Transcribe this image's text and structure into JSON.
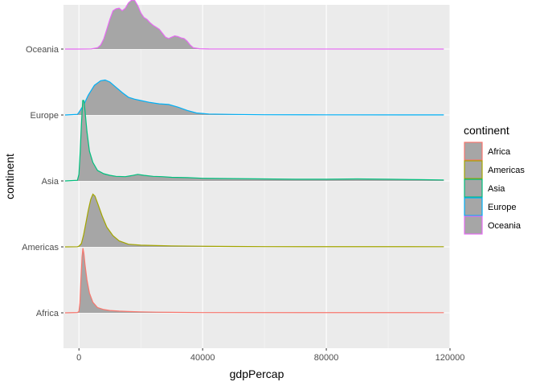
{
  "chart_data": {
    "type": "area",
    "subtype": "ridgeline-density",
    "xlabel": "gdpPercap",
    "ylabel": "continent",
    "xlim": [
      -5000,
      120000
    ],
    "x_ticks": [
      0,
      40000,
      80000,
      120000
    ],
    "x_tick_labels": [
      "0",
      "40000",
      "80000",
      "120000"
    ],
    "categories": [
      "Africa",
      "Americas",
      "Asia",
      "Europe",
      "Oceania"
    ],
    "grid": true,
    "legend": {
      "title": "continent",
      "position": "right"
    },
    "fill_color": "#A6A6A6",
    "series": [
      {
        "name": "Africa",
        "color": "#F8766D",
        "x_range": [
          -4500,
          118000
        ],
        "points": [
          [
            -4500,
            0
          ],
          [
            -500,
            0.005
          ],
          [
            0,
            0.02
          ],
          [
            300,
            0.15
          ],
          [
            600,
            0.45
          ],
          [
            1000,
            0.85
          ],
          [
            1300,
            0.98
          ],
          [
            1600,
            0.9
          ],
          [
            2000,
            0.72
          ],
          [
            2600,
            0.5
          ],
          [
            3400,
            0.3
          ],
          [
            4500,
            0.16
          ],
          [
            6000,
            0.08
          ],
          [
            8000,
            0.05
          ],
          [
            10000,
            0.035
          ],
          [
            13000,
            0.025
          ],
          [
            16000,
            0.02
          ],
          [
            20000,
            0.015
          ],
          [
            25000,
            0.01
          ],
          [
            30000,
            0.007
          ],
          [
            40000,
            0.004
          ],
          [
            118000,
            0.003
          ]
        ]
      },
      {
        "name": "Americas",
        "color": "#A3A500",
        "x_range": [
          -4500,
          118000
        ],
        "points": [
          [
            -4500,
            0
          ],
          [
            -500,
            0.003
          ],
          [
            0,
            0.01
          ],
          [
            800,
            0.05
          ],
          [
            1500,
            0.18
          ],
          [
            2200,
            0.35
          ],
          [
            3000,
            0.55
          ],
          [
            3800,
            0.72
          ],
          [
            4500,
            0.8
          ],
          [
            5200,
            0.77
          ],
          [
            6200,
            0.64
          ],
          [
            7500,
            0.47
          ],
          [
            9000,
            0.3
          ],
          [
            11000,
            0.17
          ],
          [
            13000,
            0.09
          ],
          [
            16000,
            0.04
          ],
          [
            20000,
            0.025
          ],
          [
            25000,
            0.02
          ],
          [
            30000,
            0.015
          ],
          [
            40000,
            0.01
          ],
          [
            50000,
            0.006
          ],
          [
            60000,
            0.004
          ],
          [
            118000,
            0.003
          ]
        ]
      },
      {
        "name": "Asia",
        "color": "#00BF7D",
        "x_range": [
          -4500,
          118000
        ],
        "points": [
          [
            -4500,
            0
          ],
          [
            -500,
            0.01
          ],
          [
            0,
            0.1
          ],
          [
            400,
            0.45
          ],
          [
            800,
            0.85
          ],
          [
            1200,
            1.22
          ],
          [
            1600,
            1.22
          ],
          [
            2000,
            1.05
          ],
          [
            2600,
            0.75
          ],
          [
            3400,
            0.45
          ],
          [
            4500,
            0.28
          ],
          [
            6000,
            0.16
          ],
          [
            8000,
            0.11
          ],
          [
            10000,
            0.085
          ],
          [
            12000,
            0.07
          ],
          [
            15000,
            0.065
          ],
          [
            17000,
            0.08
          ],
          [
            19000,
            0.1
          ],
          [
            21000,
            0.085
          ],
          [
            24000,
            0.07
          ],
          [
            27000,
            0.065
          ],
          [
            30000,
            0.055
          ],
          [
            35000,
            0.05
          ],
          [
            40000,
            0.04
          ],
          [
            50000,
            0.035
          ],
          [
            60000,
            0.03
          ],
          [
            70000,
            0.025
          ],
          [
            80000,
            0.025
          ],
          [
            90000,
            0.03
          ],
          [
            100000,
            0.025
          ],
          [
            110000,
            0.02
          ],
          [
            118000,
            0.015
          ]
        ]
      },
      {
        "name": "Europe",
        "color": "#00B0F6",
        "x_range": [
          -4500,
          118000
        ],
        "points": [
          [
            -4500,
            0
          ],
          [
            -500,
            0.01
          ],
          [
            0,
            0.04
          ],
          [
            1500,
            0.15
          ],
          [
            3000,
            0.3
          ],
          [
            5000,
            0.45
          ],
          [
            7000,
            0.52
          ],
          [
            8500,
            0.53
          ],
          [
            10000,
            0.5
          ],
          [
            12000,
            0.42
          ],
          [
            14000,
            0.34
          ],
          [
            16000,
            0.27
          ],
          [
            18000,
            0.24
          ],
          [
            20000,
            0.22
          ],
          [
            23000,
            0.19
          ],
          [
            26000,
            0.17
          ],
          [
            29000,
            0.16
          ],
          [
            32000,
            0.12
          ],
          [
            35000,
            0.07
          ],
          [
            38000,
            0.03
          ],
          [
            42000,
            0.015
          ],
          [
            50000,
            0.008
          ],
          [
            60000,
            0.004
          ],
          [
            80000,
            0.002
          ],
          [
            118000,
            0.001
          ]
        ]
      },
      {
        "name": "Oceania",
        "color": "#E76BF3",
        "x_range": [
          -4500,
          118000
        ],
        "points": [
          [
            -4500,
            0
          ],
          [
            0,
            0
          ],
          [
            4000,
            0.003
          ],
          [
            6000,
            0.02
          ],
          [
            7000,
            0.06
          ],
          [
            8000,
            0.15
          ],
          [
            9000,
            0.3
          ],
          [
            10000,
            0.45
          ],
          [
            11000,
            0.58
          ],
          [
            12000,
            0.61
          ],
          [
            13000,
            0.62
          ],
          [
            14000,
            0.58
          ],
          [
            15000,
            0.62
          ],
          [
            16000,
            0.7
          ],
          [
            17000,
            0.74
          ],
          [
            18000,
            0.74
          ],
          [
            19000,
            0.66
          ],
          [
            20000,
            0.55
          ],
          [
            21000,
            0.48
          ],
          [
            22000,
            0.45
          ],
          [
            23000,
            0.4
          ],
          [
            24000,
            0.36
          ],
          [
            25000,
            0.33
          ],
          [
            26000,
            0.3
          ],
          [
            27000,
            0.24
          ],
          [
            28000,
            0.18
          ],
          [
            29000,
            0.16
          ],
          [
            30000,
            0.18
          ],
          [
            31000,
            0.2
          ],
          [
            32000,
            0.19
          ],
          [
            33000,
            0.17
          ],
          [
            34000,
            0.16
          ],
          [
            35000,
            0.12
          ],
          [
            36000,
            0.06
          ],
          [
            37000,
            0.02
          ],
          [
            39000,
            0.005
          ],
          [
            42000,
            0.001
          ],
          [
            118000,
            0
          ]
        ]
      }
    ]
  }
}
